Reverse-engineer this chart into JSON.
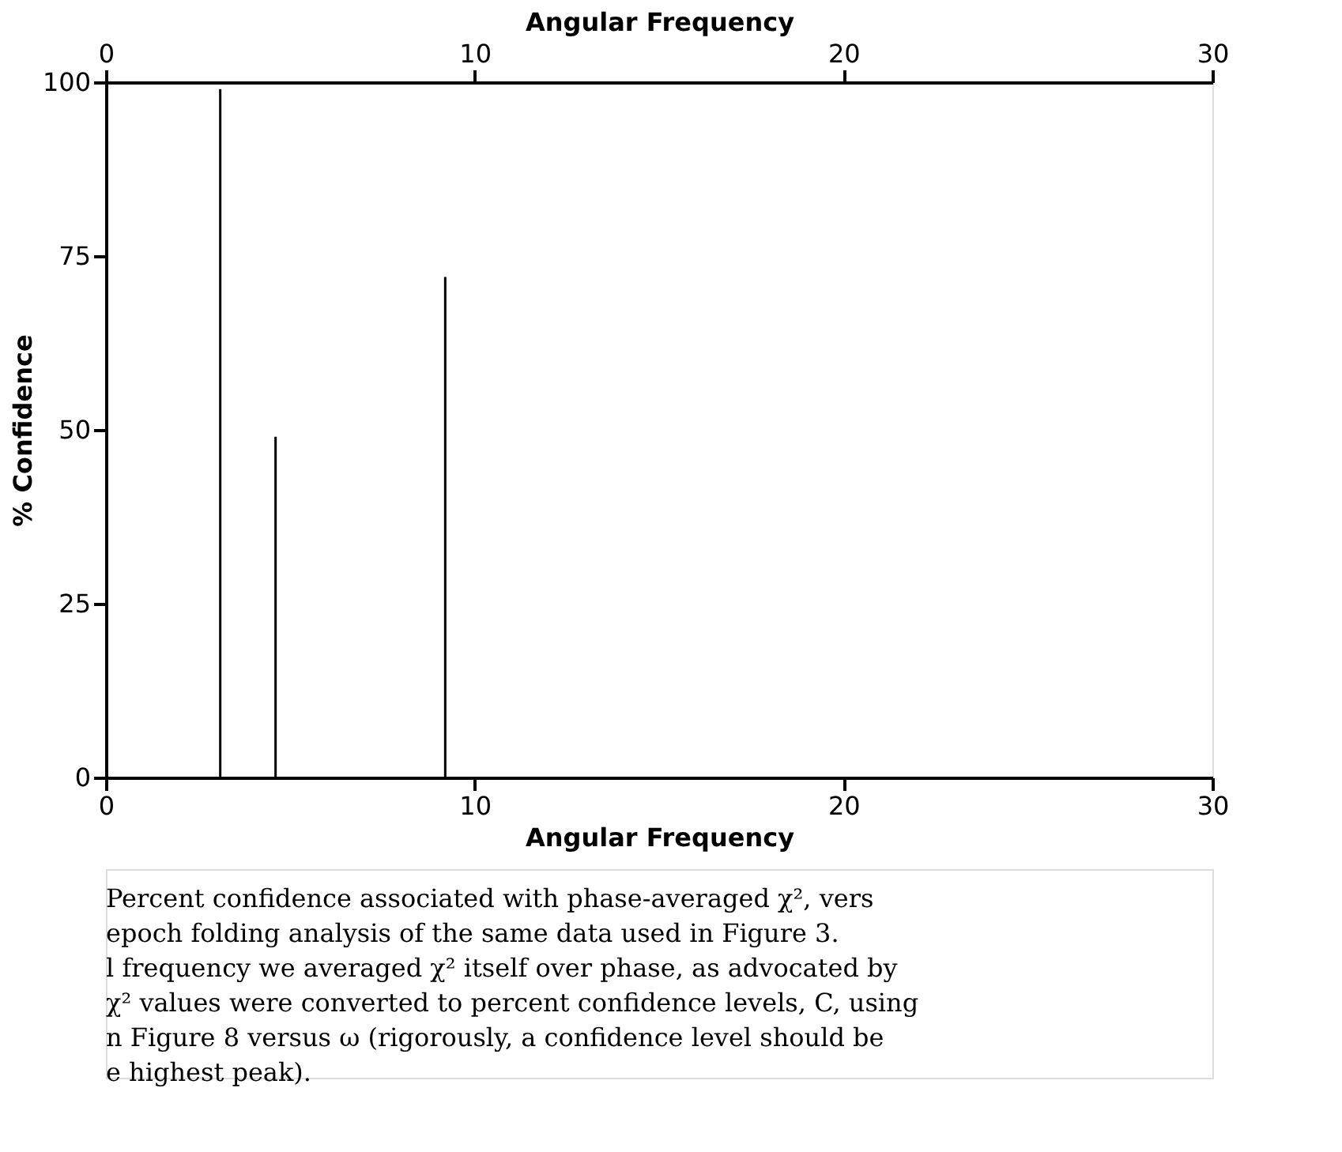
{
  "chart_data": {
    "type": "bar",
    "x": [
      3.1,
      4.6,
      9.2
    ],
    "values": [
      99,
      49,
      72
    ],
    "color": "#000000",
    "xlim": [
      0,
      30
    ],
    "xticks": [
      0,
      10,
      20,
      30
    ],
    "ylim": [
      0,
      100
    ],
    "yticks": [
      0,
      25,
      50,
      75,
      100
    ],
    "x2lim": [
      0,
      30
    ],
    "x2ticks": [
      0,
      10,
      20,
      30
    ],
    "x2label": "Angular Frequency",
    "xlabel": "Angular Frequency",
    "ylabel": "% Confidence",
    "grid": false,
    "annotations": [
      "Percent confidence associated with phase-averaged χ², vers",
      "epoch folding analysis of the same data used in Figure 3.",
      "l frequency we averaged χ² itself over phase, as advocated by",
      "χ² values were converted to percent confidence levels, C, using",
      "n Figure 8 versus ω (rigorously, a confidence level should be",
      "e highest peak)."
    ]
  }
}
